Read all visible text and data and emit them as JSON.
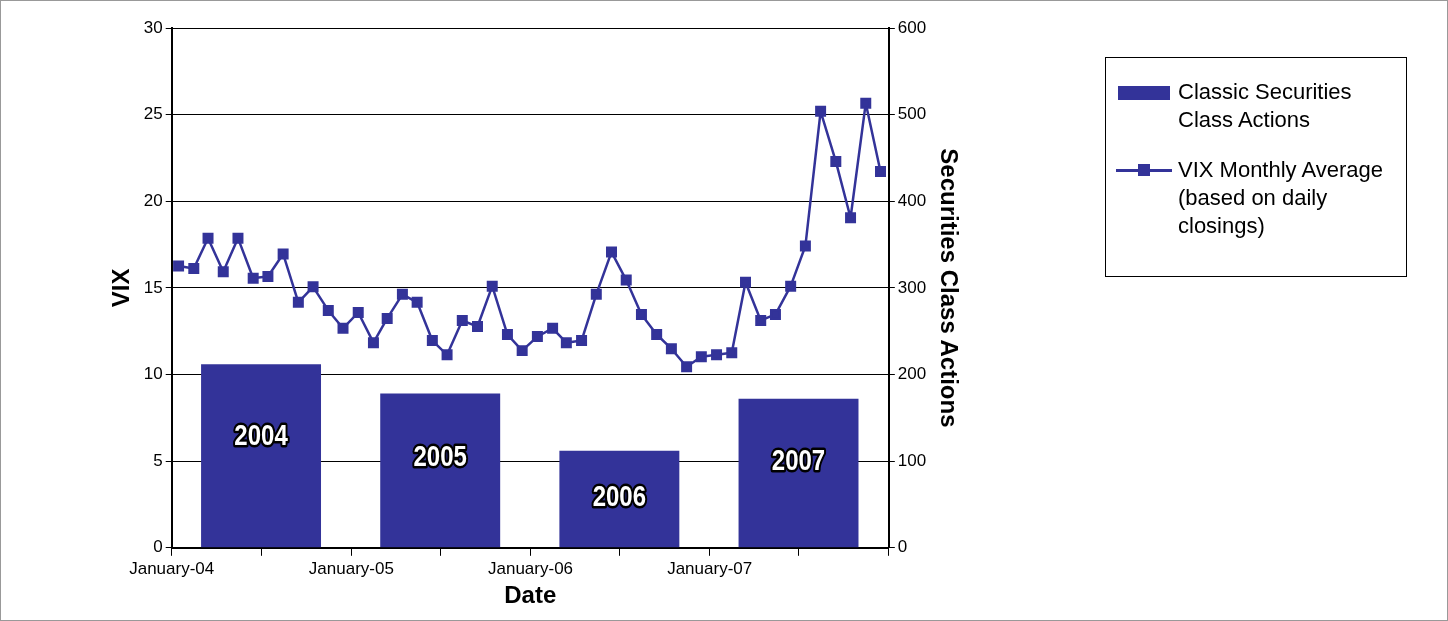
{
  "chart_data": {
    "type": "line",
    "xlabel": "Date",
    "ylabel": "VIX",
    "y2label": "Securities Class Actions",
    "xlim": [
      "2004-01-01",
      "2008-01-01"
    ],
    "xticks": [
      {
        "value": "2004-01-01",
        "label": "January-04"
      },
      {
        "value": "2004-07-01",
        "label": null
      },
      {
        "value": "2005-01-01",
        "label": "January-05"
      },
      {
        "value": "2005-07-01",
        "label": null
      },
      {
        "value": "2006-01-01",
        "label": "January-06"
      },
      {
        "value": "2006-07-01",
        "label": null
      },
      {
        "value": "2007-01-01",
        "label": "January-07"
      },
      {
        "value": "2007-07-01",
        "label": null
      },
      {
        "value": "2008-01-01",
        "label": null
      }
    ],
    "ylim": [
      0,
      30
    ],
    "yticks": [
      0,
      5,
      10,
      15,
      20,
      25,
      30
    ],
    "y2lim": [
      0,
      600
    ],
    "y2ticks": [
      0,
      100,
      200,
      300,
      400,
      500,
      600
    ],
    "grid": "y",
    "legend": "right",
    "marker": "square",
    "series": [
      {
        "name": "Classic Securities Class Actions",
        "type": "bar",
        "axis": "y2",
        "color": "#333399",
        "x": [
          "2004-07-01",
          "2005-07-01",
          "2006-07-01",
          "2007-07-01"
        ],
        "values": [
          212,
          178,
          112,
          172
        ]
      },
      {
        "name": "VIX Monthly Average (based on daily closings)",
        "color": "#333399",
        "x": [
          "2004-01-15",
          "2004-02-15",
          "2004-03-15",
          "2004-04-15",
          "2004-05-15",
          "2004-06-15",
          "2004-07-15",
          "2004-08-15",
          "2004-09-15",
          "2004-10-15",
          "2004-11-15",
          "2004-12-15",
          "2005-01-15",
          "2005-02-15",
          "2005-03-15",
          "2005-04-15",
          "2005-05-15",
          "2005-06-15",
          "2005-07-15",
          "2005-08-15",
          "2005-09-15",
          "2005-10-15",
          "2005-11-15",
          "2005-12-15",
          "2006-01-15",
          "2006-02-15",
          "2006-03-15",
          "2006-04-15",
          "2006-05-15",
          "2006-06-15",
          "2006-07-15",
          "2006-08-15",
          "2006-09-15",
          "2006-10-15",
          "2006-11-15",
          "2006-12-15",
          "2007-01-15",
          "2007-02-15",
          "2007-03-15",
          "2007-04-15",
          "2007-05-15",
          "2007-06-15",
          "2007-07-15",
          "2007-08-15",
          "2007-09-15",
          "2007-10-15",
          "2007-11-15",
          "2007-12-15"
        ],
        "values": [
          16.26,
          16.12,
          17.87,
          15.93,
          17.87,
          15.56,
          15.66,
          16.96,
          14.17,
          15.06,
          13.7,
          12.67,
          13.58,
          11.84,
          13.24,
          14.63,
          14.17,
          11.96,
          11.14,
          13.12,
          12.77,
          15.1,
          12.31,
          11.38,
          12.19,
          12.67,
          11.84,
          11.96,
          14.63,
          17.07,
          15.45,
          13.47,
          12.31,
          11.49,
          10.45,
          11.03,
          11.14,
          11.26,
          15.33,
          13.12,
          13.47,
          15.1,
          17.42,
          25.19,
          22.3,
          19.05,
          25.66,
          21.72
        ]
      }
    ],
    "annotations": [
      "2004",
      "2005",
      "2006",
      "2007"
    ]
  }
}
